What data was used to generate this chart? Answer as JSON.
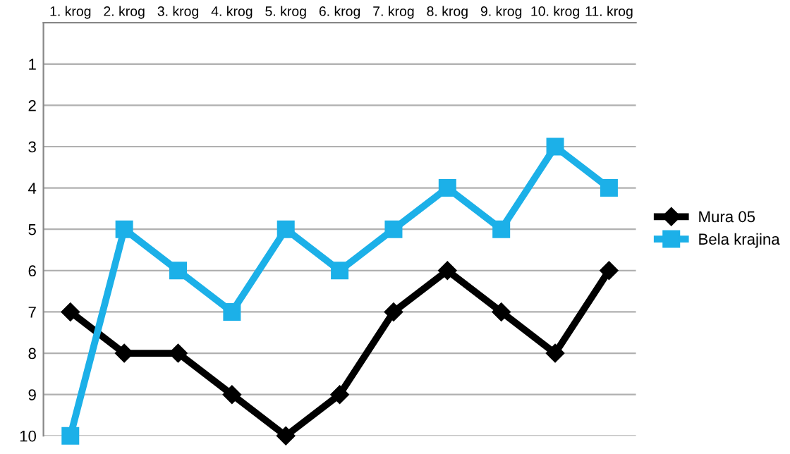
{
  "chart_data": {
    "type": "line",
    "categories": [
      "1. krog",
      "2. krog",
      "3. krog",
      "4. krog",
      "5. krog",
      "6. krog",
      "7. krog",
      "8. krog",
      "9. krog",
      "10. krog",
      "11. krog"
    ],
    "series": [
      {
        "name": "Mura 05",
        "color": "#000000",
        "marker": "diamond",
        "values": [
          7,
          8,
          8,
          9,
          10,
          9,
          7,
          6,
          7,
          8,
          6
        ]
      },
      {
        "name": "Bela krajina",
        "color": "#1cb0e8",
        "marker": "square",
        "values": [
          10,
          5,
          6,
          7,
          5,
          6,
          5,
          4,
          5,
          3,
          4
        ]
      }
    ],
    "ylim": [
      10,
      0
    ],
    "yticks": [
      1,
      2,
      3,
      4,
      5,
      6,
      7,
      8,
      9,
      10
    ],
    "grid": "y",
    "legend": "right",
    "line_style": "solid"
  }
}
